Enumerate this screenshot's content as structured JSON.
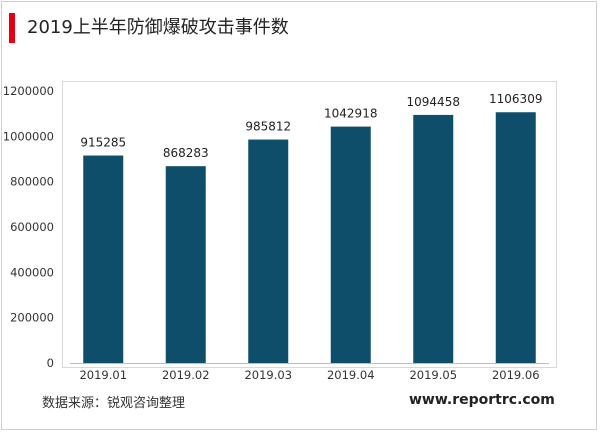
{
  "header": {
    "title": "2019上半年防御爆破攻击事件数",
    "accent_color": "#e60012"
  },
  "footer": {
    "source": "数据来源：锐观咨询整理",
    "website": "www.reportrc.com"
  },
  "chart_data": {
    "type": "bar",
    "title": "2019上半年防御爆破攻击事件数",
    "xlabel": "",
    "ylabel": "",
    "categories": [
      "2019.01",
      "2019.02",
      "2019.03",
      "2019.04",
      "2019.05",
      "2019.06"
    ],
    "values": [
      915285,
      868283,
      985812,
      1042918,
      1094458,
      1106309
    ],
    "data_labels": [
      "915285",
      "868283",
      "985812",
      "1042918",
      "1094458",
      "1106309"
    ],
    "ylim": [
      0,
      1200000
    ],
    "yticks": [
      0,
      200000,
      400000,
      600000,
      800000,
      1000000,
      1200000
    ],
    "ytick_labels": [
      "0",
      "200000",
      "400000",
      "600000",
      "800000",
      "1000000",
      "1200000"
    ],
    "bar_color": "#0e4e6b",
    "grid": false,
    "legend": "none"
  }
}
